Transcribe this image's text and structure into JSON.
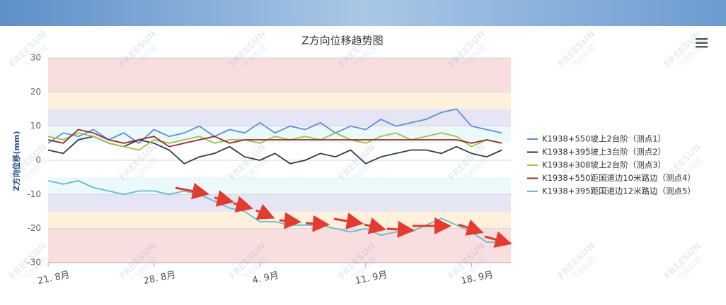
{
  "chart_data": {
    "type": "line",
    "title": "Z方向位移趋势图",
    "y_label": "Z方向位移(mm)",
    "x": [
      0,
      1,
      2,
      3,
      4,
      5,
      6,
      7,
      8,
      9,
      10,
      11,
      12,
      13,
      14,
      15,
      16,
      17,
      18,
      19,
      20,
      21,
      22,
      23,
      24,
      25,
      26,
      27,
      28,
      29,
      30
    ],
    "xlim": [
      0,
      30.6
    ],
    "xticks": [
      {
        "value": 0,
        "label": "21. 8月"
      },
      {
        "value": 7,
        "label": "28. 8月"
      },
      {
        "value": 14,
        "label": "4. 9月"
      },
      {
        "value": 21,
        "label": "11. 9月"
      },
      {
        "value": 28,
        "label": "18. 9月"
      }
    ],
    "ylim": [
      -30,
      30
    ],
    "yticks": [
      30,
      20,
      10,
      0,
      -10,
      -20,
      -30
    ],
    "grid": true,
    "legend": "right",
    "plot_bands": [
      {
        "from": 20,
        "to": 30,
        "color": "#f8dede"
      },
      {
        "from": 15,
        "to": 20,
        "color": "#fdf1de"
      },
      {
        "from": 10,
        "to": 15,
        "color": "#e5e5f6"
      },
      {
        "from": 5,
        "to": 10,
        "color": "#ecf9fb"
      },
      {
        "from": -10,
        "to": -5,
        "color": "#ecf9fb"
      },
      {
        "from": -15,
        "to": -10,
        "color": "#e5e5f6"
      },
      {
        "from": -20,
        "to": -15,
        "color": "#fdf1de"
      },
      {
        "from": -30,
        "to": -20,
        "color": "#f8dede"
      }
    ],
    "series": [
      {
        "name": "K1938+550坡上2台阶（测点1）",
        "color": "#5b8fd9",
        "values": [
          5,
          8,
          7,
          9,
          6,
          8,
          5,
          9,
          7,
          8,
          10,
          7,
          9,
          8,
          11,
          8,
          10,
          9,
          11,
          8,
          10,
          9,
          12,
          10,
          11,
          12,
          14,
          15,
          10,
          9,
          8
        ]
      },
      {
        "name": "K1938+395坡上3台阶（测点2）",
        "color": "#2d3a4a",
        "values": [
          3,
          2,
          6,
          7,
          5,
          4,
          6,
          5,
          3,
          -1,
          1,
          2,
          4,
          1,
          0,
          2,
          -1,
          0,
          2,
          1,
          3,
          -1,
          1,
          2,
          3,
          3,
          2,
          4,
          2,
          1,
          3
        ]
      },
      {
        "name": "K1938+308坡上2台阶（测点3）",
        "color": "#9ec43a",
        "values": [
          7,
          6,
          8,
          7,
          5,
          4,
          3,
          6,
          5,
          6,
          7,
          5,
          6,
          6,
          5,
          7,
          6,
          7,
          6,
          8,
          6,
          5,
          7,
          8,
          6,
          7,
          8,
          7,
          4,
          6,
          5
        ]
      },
      {
        "name": "K1938+550距国道边10米路边（测点4）",
        "color": "#9b2a2a",
        "values": [
          6,
          5,
          9,
          8,
          6,
          5,
          6,
          7,
          4,
          5,
          6,
          7,
          5,
          6,
          6,
          6,
          6,
          6,
          6,
          6,
          6,
          6,
          6,
          6,
          6,
          6,
          6,
          6,
          5,
          6,
          5
        ]
      },
      {
        "name": "K1938+395距国道边12米路边（测点5）",
        "color": "#5bc0d0",
        "values": [
          -6,
          -7,
          -6,
          -8,
          -9,
          -10,
          -9,
          -9,
          -10,
          -9,
          -10,
          -12,
          -14,
          -15,
          -18,
          -18,
          -19,
          -19,
          -19,
          -20,
          -21,
          -20,
          -22,
          -21,
          -21,
          -19,
          -17,
          -19,
          -21,
          -24,
          -24
        ]
      }
    ]
  },
  "watermark": {
    "brand": "FREESUN",
    "cn": "飞尚科技"
  }
}
